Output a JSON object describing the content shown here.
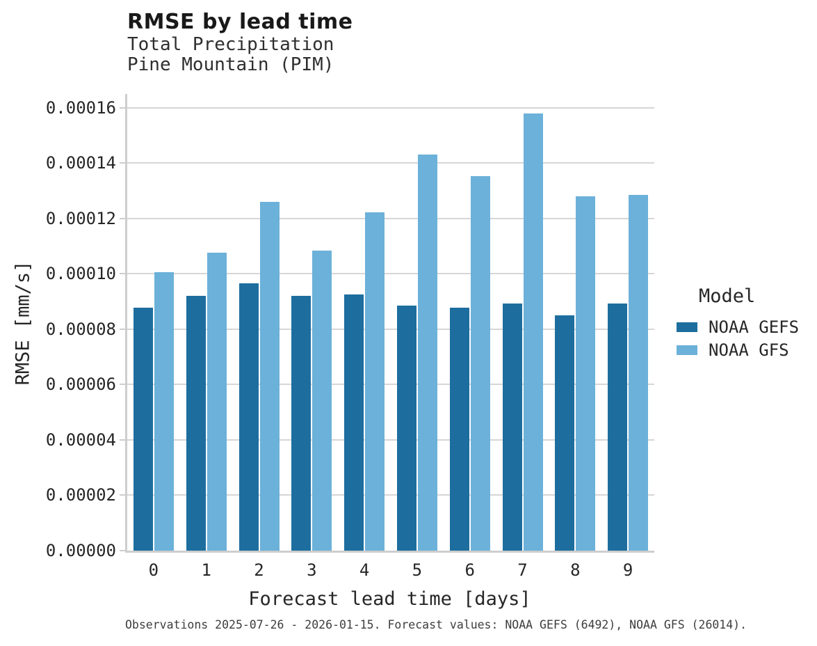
{
  "header": {
    "title": "RMSE by lead time",
    "subtitle_line1": "Total Precipitation",
    "subtitle_line2": "Pine Mountain (PIM)"
  },
  "chart_data": {
    "type": "bar",
    "title": "RMSE by lead time",
    "subtitle": [
      "Total Precipitation",
      "Pine Mountain (PIM)"
    ],
    "categories": [
      "0",
      "1",
      "2",
      "3",
      "4",
      "5",
      "6",
      "7",
      "8",
      "9"
    ],
    "series": [
      {
        "name": "NOAA GEFS",
        "color": "#1d6e9e",
        "values": [
          8.79e-05,
          9.2e-05,
          9.65e-05,
          9.2e-05,
          9.25e-05,
          8.86e-05,
          8.77e-05,
          8.93e-05,
          8.5e-05,
          8.92e-05
        ]
      },
      {
        "name": "NOAA GFS",
        "color": "#6cb1d9",
        "values": [
          0.0001005,
          0.0001077,
          0.000126,
          0.0001085,
          0.0001222,
          0.000143,
          0.0001353,
          0.000158,
          0.000128,
          0.0001285
        ]
      }
    ],
    "xlabel": "Forecast lead time [days]",
    "ylabel": "RMSE [mm/s]",
    "ylim": [
      0,
      0.000165
    ],
    "yticks": [
      "0.00000",
      "0.00002",
      "0.00004",
      "0.00006",
      "0.00008",
      "0.00010",
      "0.00012",
      "0.00014",
      "0.00016"
    ],
    "grid": "horizontal",
    "legend_position": "right",
    "legend_title": "Model"
  },
  "axes": {
    "xlabel": "Forecast lead time [days]",
    "ylabel": "RMSE [mm/s]"
  },
  "legend": {
    "title": "Model",
    "items": [
      {
        "label": "NOAA GEFS",
        "color": "#1d6e9e"
      },
      {
        "label": "NOAA GFS",
        "color": "#6cb1d9"
      }
    ]
  },
  "footer": {
    "caption": "Observations 2025-07-26 - 2026-01-15. Forecast values: NOAA GEFS (6492), NOAA GFS (26014)."
  },
  "colors": {
    "bar_dark": "#1d6e9e",
    "bar_light": "#6cb1d9",
    "gridline": "#d6d6d6",
    "axis_spine": "#cdcdcd",
    "text": "#262626",
    "footer_text": "#3d3d3d"
  }
}
